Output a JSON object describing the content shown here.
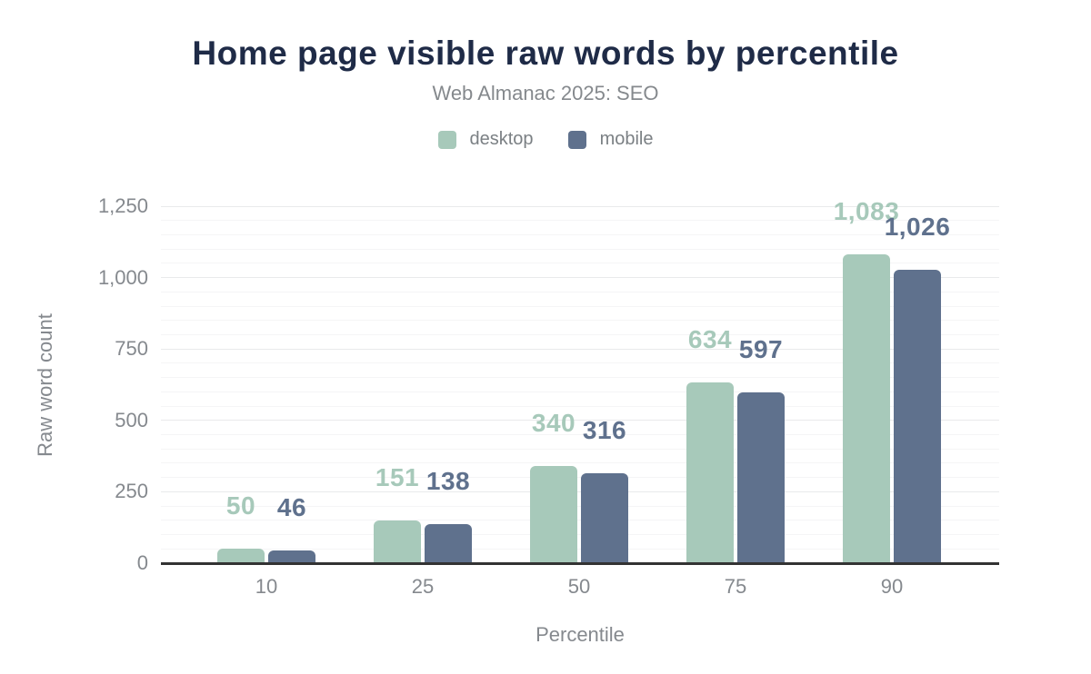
{
  "page": {
    "title": "Home page visible raw words by percentile",
    "subtitle": "Web Almanac 2025: SEO"
  },
  "chart_data": {
    "type": "bar",
    "title": "Home page visible raw words by percentile",
    "subtitle": "Web Almanac 2025: SEO",
    "categories": [
      "10",
      "25",
      "50",
      "75",
      "90"
    ],
    "series": [
      {
        "name": "desktop",
        "color": "#a7c9ba",
        "values": [
          50,
          151,
          340,
          634,
          1083
        ],
        "labels": [
          "50",
          "151",
          "340",
          "634",
          "1,083"
        ]
      },
      {
        "name": "mobile",
        "color": "#5f718d",
        "values": [
          46,
          138,
          316,
          597,
          1026
        ],
        "labels": [
          "46",
          "138",
          "316",
          "597",
          "1,026"
        ]
      }
    ],
    "xlabel": "Percentile",
    "ylabel": "Raw word count",
    "ylim": [
      0,
      1250
    ],
    "y_major_step": 250,
    "y_minor_step": 50,
    "y_tick_labels": [
      "0",
      "250",
      "500",
      "750",
      "1,000",
      "1,250"
    ],
    "grid": "on",
    "legend_position": "top",
    "colors": {
      "title_text": "#1f2b47",
      "subtitle_text": "#85898d",
      "axis_text": "#85898e",
      "legend_text": "#7b8084",
      "major_grid": "#e9eaeb",
      "minor_grid": "#f5f5f6",
      "axis_line": "#333333"
    }
  }
}
